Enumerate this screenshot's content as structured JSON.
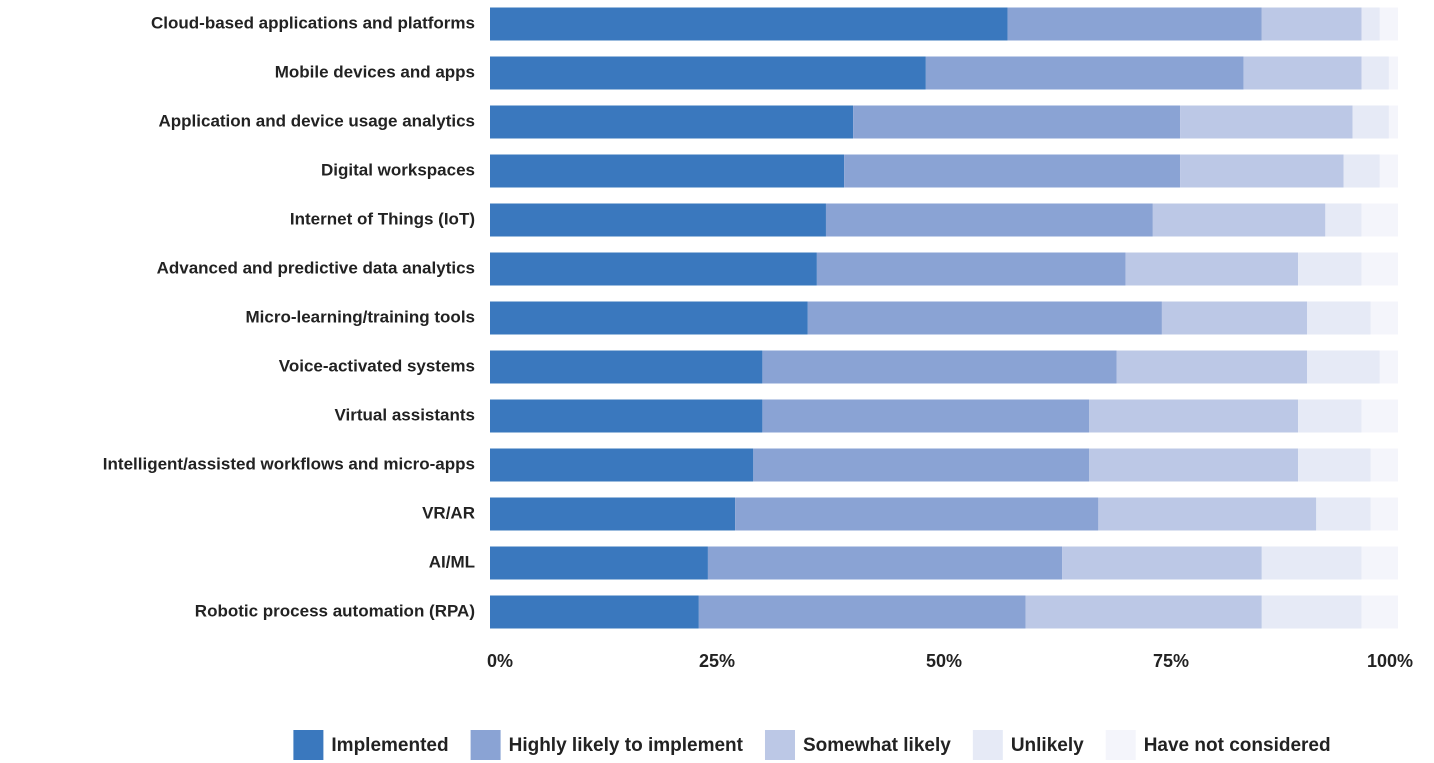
{
  "chart_data": {
    "type": "stacked_bar_horizontal",
    "categories": [
      "Cloud-based applications and platforms",
      "Mobile devices and apps",
      "Application and device usage analytics",
      "Digital workspaces",
      "Internet of Things (IoT)",
      "Advanced and predictive data analytics",
      "Micro-learning/training tools",
      "Voice-activated systems",
      "Virtual assistants",
      "Intelligent/assisted workflows and micro-apps",
      "VR/AR",
      "AI/ML",
      "Robotic process automation (RPA)"
    ],
    "series": [
      {
        "name": "Implemented",
        "color": "#3a78be",
        "values": [
          57,
          48,
          40,
          39,
          37,
          36,
          35,
          30,
          30,
          29,
          27,
          24,
          23
        ]
      },
      {
        "name": "Highly likely to implement",
        "color": "#8aa3d4",
        "values": [
          28,
          35,
          36,
          37,
          36,
          34,
          39,
          39,
          36,
          37,
          40,
          39,
          36
        ]
      },
      {
        "name": "Somewhat likely",
        "color": "#bcc8e6",
        "values": [
          11,
          13,
          19,
          18,
          19,
          19,
          16,
          21,
          23,
          23,
          24,
          22,
          26
        ]
      },
      {
        "name": "Unlikely",
        "color": "#e6eaf6",
        "values": [
          2,
          3,
          4,
          4,
          4,
          7,
          7,
          8,
          7,
          8,
          6,
          11,
          11
        ]
      },
      {
        "name": "Have not considered",
        "color": "#f4f5fb",
        "values": [
          2,
          1,
          1,
          2,
          4,
          4,
          3,
          2,
          4,
          3,
          3,
          4,
          4
        ]
      }
    ],
    "xlim": [
      0,
      100
    ],
    "xticks": [
      {
        "value": 0,
        "label": "0%"
      },
      {
        "value": 25,
        "label": "25%"
      },
      {
        "value": 50,
        "label": "50%"
      },
      {
        "value": 75,
        "label": "75%"
      },
      {
        "value": 100,
        "label": "100%"
      }
    ],
    "legend": "bottom"
  }
}
